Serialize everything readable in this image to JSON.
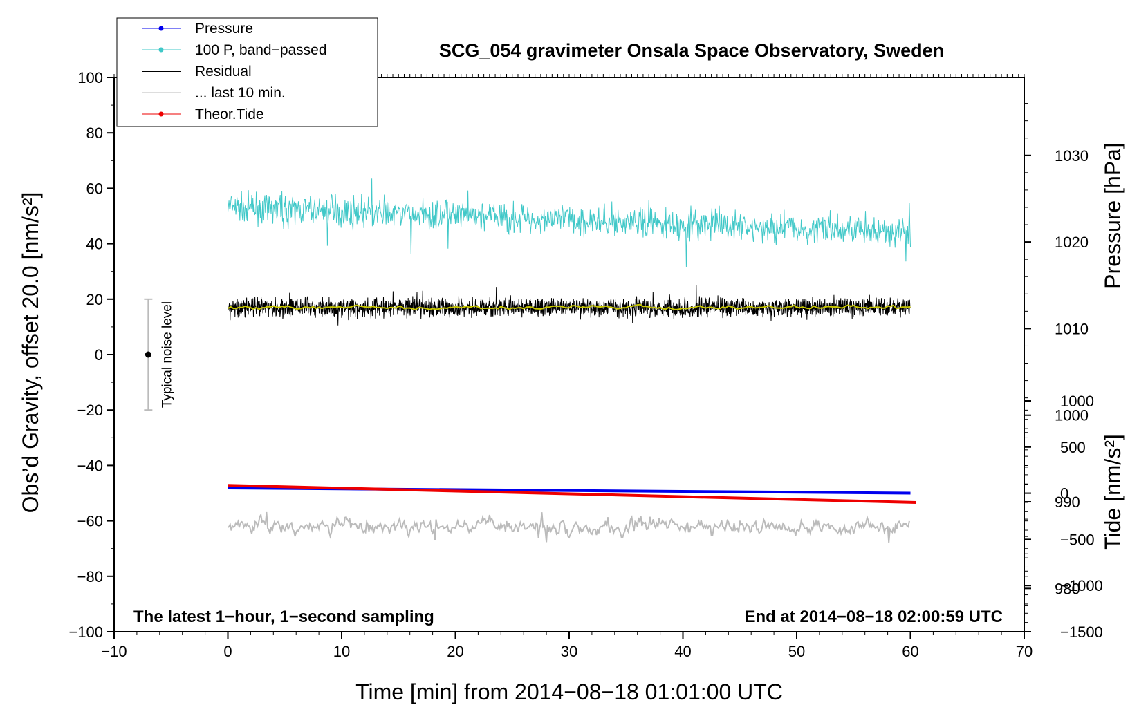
{
  "chart_data": {
    "type": "line",
    "title": "SCG_054 gravimeter Onsala Space Observatory, Sweden",
    "xlabel": "Time [min] from 2014−08−18 01:01:00 UTC",
    "ylabel": "Obs’d Gravity, offset 20.0 [nm/s²]",
    "ylabel_right_pressure": "Pressure [hPa]",
    "ylabel_right_tide": "Tide [nm/s²]",
    "xlim": [
      -10,
      70
    ],
    "ylim": [
      -100,
      100
    ],
    "pressure_ylim": [
      975,
      1039
    ],
    "tide_ylim": [
      -1500,
      1000
    ],
    "grid": false,
    "legend_position": "top-left",
    "x_ticks": [
      {
        "v": -10,
        "label": "−10"
      },
      {
        "v": 0,
        "label": "0"
      },
      {
        "v": 10,
        "label": "10"
      },
      {
        "v": 20,
        "label": "20"
      },
      {
        "v": 30,
        "label": "30"
      },
      {
        "v": 40,
        "label": "40"
      },
      {
        "v": 50,
        "label": "50"
      },
      {
        "v": 60,
        "label": "60"
      },
      {
        "v": 70,
        "label": "70"
      }
    ],
    "y_ticks": [
      {
        "v": 100,
        "label": "100"
      },
      {
        "v": 80,
        "label": "80"
      },
      {
        "v": 60,
        "label": "60"
      },
      {
        "v": 40,
        "label": "40"
      },
      {
        "v": 20,
        "label": "20"
      },
      {
        "v": 0,
        "label": "0"
      },
      {
        "v": -20,
        "label": "−20"
      },
      {
        "v": -40,
        "label": "−40"
      },
      {
        "v": -60,
        "label": "−60"
      },
      {
        "v": -80,
        "label": "−80"
      },
      {
        "v": -100,
        "label": "−100"
      }
    ],
    "pressure_ticks": [
      {
        "v": 1030,
        "label": "1030"
      },
      {
        "v": 1020,
        "label": "1020"
      },
      {
        "v": 1010,
        "label": "1010"
      },
      {
        "v": 1000,
        "label": "1000"
      },
      {
        "v": 990,
        "label": "990"
      },
      {
        "v": 980,
        "label": "980"
      }
    ],
    "tide_ticks": [
      {
        "v": 1000,
        "label": "1000"
      },
      {
        "v": 500,
        "label": "500"
      },
      {
        "v": 0,
        "label": "0"
      },
      {
        "v": -500,
        "label": "−500"
      },
      {
        "v": -1000,
        "label": "−1000"
      },
      {
        "v": -1500,
        "label": "−1500"
      }
    ],
    "series": [
      {
        "name": "Pressure",
        "color": "#0000ee",
        "axis": "pressure",
        "x": [
          0,
          60
        ],
        "y": [
          991.6,
          991.0
        ]
      },
      {
        "name": "100 P, band−passed",
        "color": "#40c8c8",
        "axis": "gravity",
        "x": [
          0,
          60
        ],
        "y_mean": [
          53,
          44
        ],
        "y_amplitude": 8
      },
      {
        "name": "Residual",
        "color": "#000000",
        "axis": "gravity",
        "x": [
          0,
          60
        ],
        "y_mean": [
          17,
          17
        ],
        "y_amplitude": 5
      },
      {
        "name": "... last 10 min.",
        "color": "#bbbbbb",
        "axis": "gravity",
        "x": [
          0,
          60
        ],
        "y_mean": [
          -62,
          -62
        ],
        "y_amplitude": 4
      },
      {
        "name": "Theor.Tide",
        "color": "#ee0000",
        "axis": "tide",
        "x": [
          0,
          60.5
        ],
        "y": [
          85,
          -100
        ]
      }
    ],
    "smoothed_residual_color": "#c8c800",
    "annotations": {
      "left_bottom": "The latest 1−hour, 1−second sampling",
      "right_bottom": "End at 2014−08−18 02:00:59 UTC",
      "noise_level_label": "Typical noise level",
      "noise_level_x": -7,
      "noise_level_range": [
        -20,
        20
      ]
    }
  }
}
